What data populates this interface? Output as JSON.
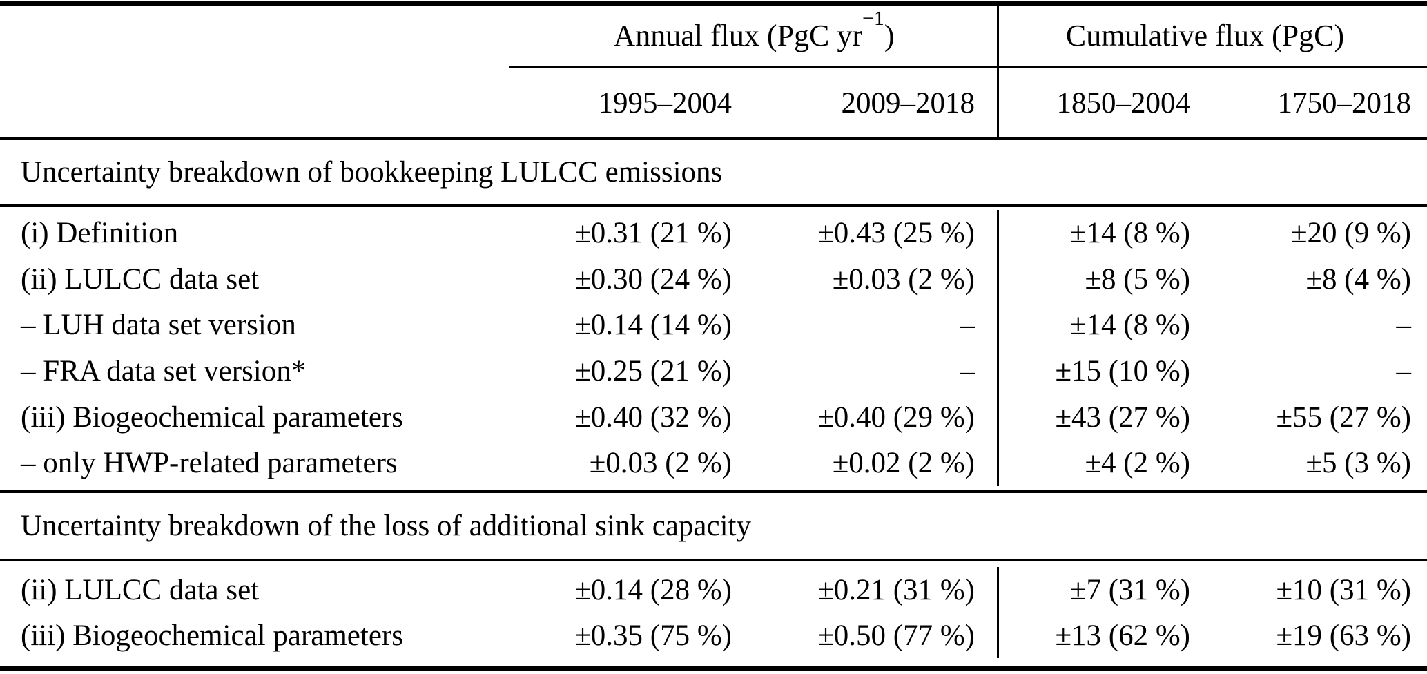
{
  "table": {
    "col_groups": [
      {
        "text": "Annual flux (PgC yr",
        "sup": "−1",
        "close": ")"
      },
      {
        "label": "Cumulative flux (PgC)"
      }
    ],
    "columns": [
      "1995–2004",
      "2009–2018",
      "1850–2004",
      "1750–2018"
    ],
    "sections": [
      {
        "title": "Uncertainty breakdown of bookkeeping LULCC emissions",
        "rows": [
          {
            "label": "(i) Definition",
            "values": [
              "±0.31 (21 %)",
              "±0.43 (25 %)",
              "±14 (8 %)",
              "±20 (9 %)"
            ]
          },
          {
            "label": "(ii) LULCC data set",
            "values": [
              "±0.30 (24 %)",
              "±0.03 (2 %)",
              "±8 (5 %)",
              "±8 (4 %)"
            ]
          },
          {
            "label": "– LUH data set version",
            "values": [
              "±0.14 (14 %)",
              "–",
              "±14 (8 %)",
              "–"
            ]
          },
          {
            "label": "– FRA data set version*",
            "values": [
              "±0.25 (21 %)",
              "–",
              "±15 (10 %)",
              "–"
            ]
          },
          {
            "label": "(iii) Biogeochemical parameters",
            "values": [
              "±0.40 (32 %)",
              "±0.40 (29 %)",
              "±43 (27 %)",
              "±55 (27 %)"
            ]
          },
          {
            "label": "– only HWP-related parameters",
            "values": [
              "±0.03 (2 %)",
              "±0.02 (2 %)",
              "±4 (2 %)",
              "±5 (3 %)"
            ]
          }
        ]
      },
      {
        "title": "Uncertainty breakdown of the loss of additional sink capacity",
        "rows": [
          {
            "label": "(ii) LULCC data set",
            "values": [
              "±0.14 (28 %)",
              "±0.21 (31 %)",
              "±7 (31 %)",
              "±10 (31 %)"
            ]
          },
          {
            "label": "(iii) Biogeochemical parameters",
            "values": [
              "±0.35 (75 %)",
              "±0.50 (77 %)",
              "±13 (62 %)",
              "±19 (63 %)"
            ]
          }
        ]
      }
    ]
  }
}
